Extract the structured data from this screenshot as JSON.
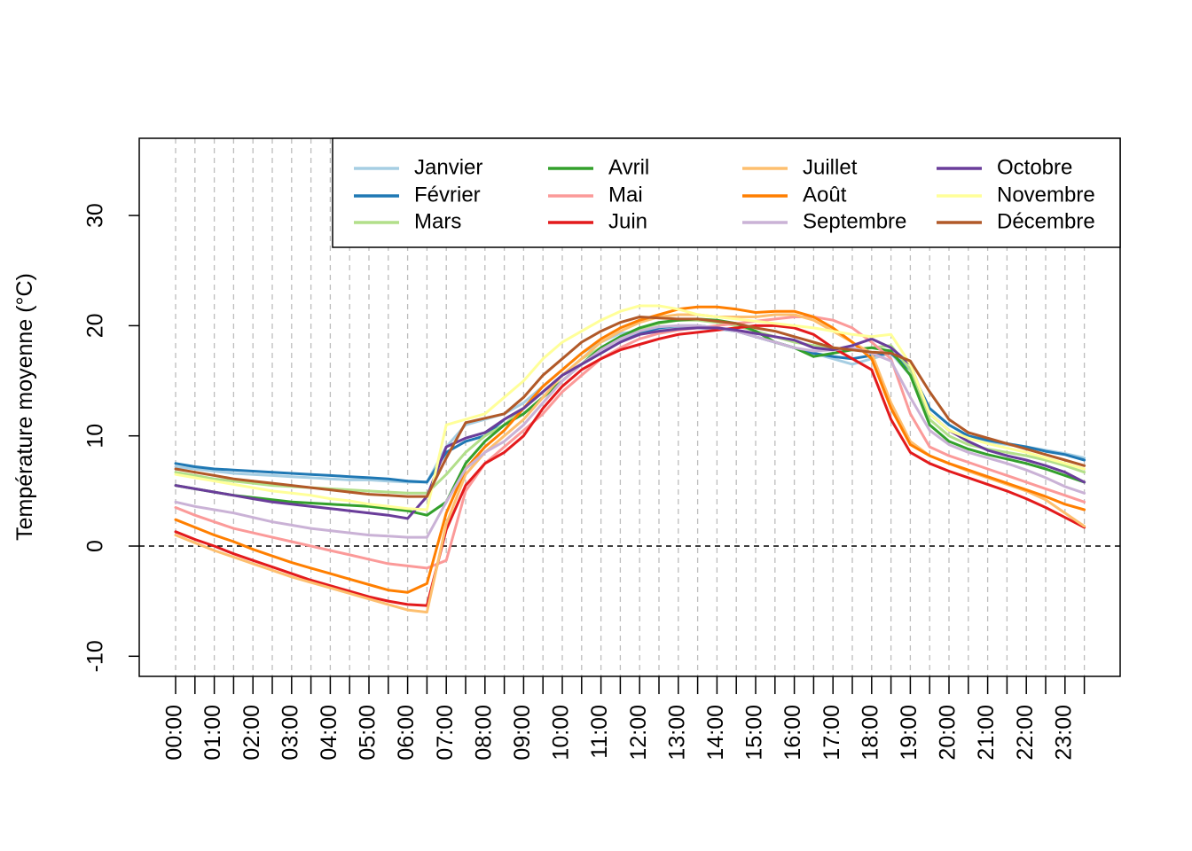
{
  "chart_data": {
    "type": "line",
    "title": "",
    "xlabel": "",
    "ylabel": "Température moyenne (°C)",
    "ylim": [
      -12,
      37
    ],
    "yticks": [
      -10,
      0,
      10,
      20,
      30
    ],
    "xticks": [
      "00:00",
      "01:00",
      "02:00",
      "03:00",
      "04:00",
      "05:00",
      "06:00",
      "07:00",
      "08:00",
      "09:00",
      "10:00",
      "11:00",
      "12:00",
      "13:00",
      "14:00",
      "15:00",
      "16:00",
      "17:00",
      "18:00",
      "19:00",
      "20:00",
      "21:00",
      "22:00",
      "23:00"
    ],
    "x_step_minutes": 30,
    "grid": "vertical dashed every half hour",
    "reference_line": 0,
    "legend_position": "top-right",
    "series": [
      {
        "name": "Janvier",
        "color": "#A6CEE3",
        "values": [
          7.2,
          7.0,
          6.8,
          6.6,
          6.5,
          6.4,
          6.3,
          6.2,
          6.1,
          6.0,
          6.0,
          5.9,
          5.8,
          5.8,
          9.0,
          11.0,
          11.5,
          12.0,
          13.0,
          14.5,
          16.0,
          17.5,
          18.5,
          19.3,
          19.5,
          19.7,
          19.8,
          19.8,
          19.7,
          19.5,
          19.0,
          18.5,
          18.0,
          17.5,
          17.0,
          16.5,
          17.0,
          17.5,
          15.5,
          12.0,
          10.5,
          9.8,
          9.5,
          9.2,
          9.0,
          8.7,
          8.4,
          8.0
        ]
      },
      {
        "name": "Février",
        "color": "#1F78B4",
        "values": [
          7.5,
          7.2,
          7.0,
          6.9,
          6.8,
          6.7,
          6.6,
          6.5,
          6.4,
          6.3,
          6.2,
          6.1,
          5.9,
          5.8,
          8.5,
          9.5,
          10.0,
          11.5,
          12.5,
          14.0,
          15.5,
          16.5,
          17.5,
          18.5,
          19.3,
          19.8,
          20.0,
          20.0,
          19.8,
          19.5,
          19.0,
          18.5,
          18.0,
          17.5,
          17.2,
          17.0,
          17.3,
          17.5,
          16.0,
          12.5,
          11.0,
          10.0,
          9.6,
          9.3,
          9.0,
          8.6,
          8.3,
          7.8
        ]
      },
      {
        "name": "Mars",
        "color": "#B2DF8A",
        "values": [
          6.7,
          6.4,
          6.1,
          5.9,
          5.7,
          5.5,
          5.4,
          5.3,
          5.2,
          5.1,
          5.0,
          4.9,
          4.8,
          4.8,
          6.5,
          8.5,
          10.0,
          11.0,
          12.5,
          14.0,
          15.5,
          17.0,
          18.0,
          19.0,
          19.7,
          20.2,
          20.5,
          20.5,
          20.3,
          20.0,
          19.5,
          19.0,
          18.5,
          18.2,
          18.0,
          17.8,
          18.0,
          18.2,
          16.0,
          11.5,
          10.0,
          9.2,
          8.8,
          8.5,
          8.2,
          7.8,
          7.3,
          6.7
        ]
      },
      {
        "name": "Avril",
        "color": "#33A02C",
        "values": [
          5.5,
          5.2,
          4.9,
          4.6,
          4.4,
          4.2,
          4.0,
          3.9,
          3.8,
          3.7,
          3.6,
          3.4,
          3.2,
          2.8,
          4.0,
          7.5,
          9.5,
          11.0,
          12.0,
          13.5,
          15.0,
          16.5,
          18.0,
          19.0,
          19.8,
          20.3,
          20.5,
          20.6,
          20.5,
          20.2,
          19.5,
          18.5,
          18.0,
          17.2,
          17.5,
          17.8,
          18.0,
          17.7,
          15.5,
          11.0,
          9.5,
          8.8,
          8.3,
          7.9,
          7.5,
          7.0,
          6.4,
          5.8
        ]
      },
      {
        "name": "Mai",
        "color": "#FB9A99",
        "values": [
          3.5,
          2.8,
          2.2,
          1.6,
          1.2,
          0.8,
          0.4,
          0.0,
          -0.4,
          -0.8,
          -1.2,
          -1.6,
          -1.8,
          -2.0,
          -1.3,
          5.0,
          7.5,
          9.0,
          10.5,
          12.0,
          14.0,
          15.5,
          17.0,
          18.0,
          18.8,
          19.3,
          19.6,
          19.8,
          20.0,
          20.2,
          20.4,
          20.6,
          20.8,
          20.8,
          20.5,
          19.8,
          18.5,
          17.0,
          12.0,
          9.0,
          8.2,
          7.6,
          7.0,
          6.4,
          5.8,
          5.2,
          4.6,
          4.0
        ]
      },
      {
        "name": "Juin",
        "color": "#E31A1C",
        "values": [
          1.3,
          0.6,
          0.0,
          -0.7,
          -1.3,
          -1.9,
          -2.5,
          -3.1,
          -3.6,
          -4.1,
          -4.6,
          -5.0,
          -5.3,
          -5.4,
          1.5,
          5.5,
          7.5,
          8.5,
          10.0,
          12.5,
          14.5,
          16.0,
          17.0,
          17.8,
          18.3,
          18.8,
          19.2,
          19.4,
          19.6,
          19.8,
          20.0,
          20.0,
          19.8,
          19.2,
          18.0,
          17.0,
          16.0,
          11.5,
          8.5,
          7.5,
          6.8,
          6.2,
          5.6,
          5.0,
          4.3,
          3.5,
          2.6,
          1.7
        ]
      },
      {
        "name": "Juillet",
        "color": "#FDBF6F",
        "values": [
          1.0,
          0.3,
          -0.4,
          -1.0,
          -1.6,
          -2.2,
          -2.8,
          -3.3,
          -3.8,
          -4.3,
          -4.8,
          -5.3,
          -5.8,
          -6.0,
          2.0,
          6.5,
          8.5,
          10.0,
          11.5,
          13.5,
          15.5,
          17.0,
          18.5,
          19.5,
          20.3,
          20.8,
          21.0,
          21.0,
          20.8,
          20.8,
          20.8,
          21.0,
          21.0,
          20.5,
          19.5,
          18.5,
          17.5,
          13.0,
          9.5,
          8.2,
          7.5,
          6.8,
          6.2,
          5.6,
          5.0,
          4.2,
          3.0,
          1.8
        ]
      },
      {
        "name": "Août",
        "color": "#FF7F00",
        "values": [
          2.4,
          1.7,
          1.0,
          0.4,
          -0.3,
          -0.9,
          -1.5,
          -2.0,
          -2.5,
          -3.0,
          -3.5,
          -4.0,
          -4.2,
          -3.4,
          3.0,
          7.0,
          9.0,
          10.5,
          12.5,
          14.5,
          16.0,
          17.5,
          18.8,
          19.8,
          20.5,
          21.0,
          21.5,
          21.7,
          21.7,
          21.5,
          21.2,
          21.3,
          21.3,
          20.8,
          19.8,
          18.5,
          17.0,
          12.5,
          9.2,
          8.2,
          7.5,
          6.9,
          6.3,
          5.7,
          5.1,
          4.5,
          3.8,
          3.3
        ]
      },
      {
        "name": "Septembre",
        "color": "#CAB2D6",
        "values": [
          4.0,
          3.6,
          3.3,
          3.0,
          2.6,
          2.2,
          1.9,
          1.6,
          1.4,
          1.2,
          1.0,
          0.9,
          0.8,
          0.8,
          4.0,
          7.0,
          8.5,
          9.5,
          11.0,
          13.0,
          15.0,
          16.5,
          17.8,
          18.8,
          19.5,
          19.9,
          20.0,
          20.0,
          19.8,
          19.5,
          19.0,
          18.5,
          18.0,
          17.7,
          17.8,
          18.0,
          17.5,
          16.8,
          13.5,
          10.5,
          9.2,
          8.5,
          8.0,
          7.5,
          6.9,
          6.2,
          5.4,
          4.8
        ]
      },
      {
        "name": "Octobre",
        "color": "#6A3D9A",
        "values": [
          5.5,
          5.2,
          4.9,
          4.6,
          4.3,
          4.0,
          3.8,
          3.6,
          3.4,
          3.2,
          3.0,
          2.8,
          2.5,
          4.5,
          9.0,
          9.8,
          10.3,
          11.5,
          12.5,
          14.0,
          15.5,
          16.5,
          17.5,
          18.5,
          19.2,
          19.5,
          19.7,
          19.8,
          19.8,
          19.6,
          19.3,
          19.0,
          18.7,
          18.0,
          17.8,
          18.2,
          18.8,
          18.0,
          16.5,
          12.0,
          10.5,
          9.5,
          8.7,
          8.2,
          7.8,
          7.3,
          6.7,
          5.8
        ]
      },
      {
        "name": "Novembre",
        "color": "#FFFF99",
        "values": [
          6.5,
          6.2,
          5.9,
          5.6,
          5.3,
          5.0,
          4.8,
          4.6,
          4.3,
          4.1,
          3.8,
          3.6,
          3.4,
          3.3,
          11.0,
          11.5,
          12.0,
          13.5,
          15.0,
          17.0,
          18.5,
          19.5,
          20.5,
          21.3,
          21.8,
          21.8,
          21.5,
          21.0,
          20.8,
          20.6,
          20.4,
          20.2,
          20.0,
          19.8,
          19.5,
          19.2,
          19.0,
          19.2,
          16.5,
          12.0,
          10.5,
          9.8,
          9.3,
          8.9,
          8.5,
          8.0,
          7.5,
          7.0
        ]
      },
      {
        "name": "Décembre",
        "color": "#B15928",
        "values": [
          7.0,
          6.7,
          6.4,
          6.1,
          5.9,
          5.7,
          5.5,
          5.3,
          5.1,
          4.9,
          4.7,
          4.6,
          4.5,
          4.5,
          8.0,
          11.2,
          11.6,
          12.0,
          13.5,
          15.5,
          17.0,
          18.5,
          19.5,
          20.3,
          20.8,
          20.7,
          20.6,
          20.6,
          20.4,
          20.2,
          19.8,
          19.5,
          19.0,
          18.5,
          18.0,
          17.8,
          17.6,
          17.5,
          16.8,
          14.0,
          11.5,
          10.3,
          9.8,
          9.3,
          8.8,
          8.3,
          7.8,
          7.3
        ]
      }
    ]
  }
}
